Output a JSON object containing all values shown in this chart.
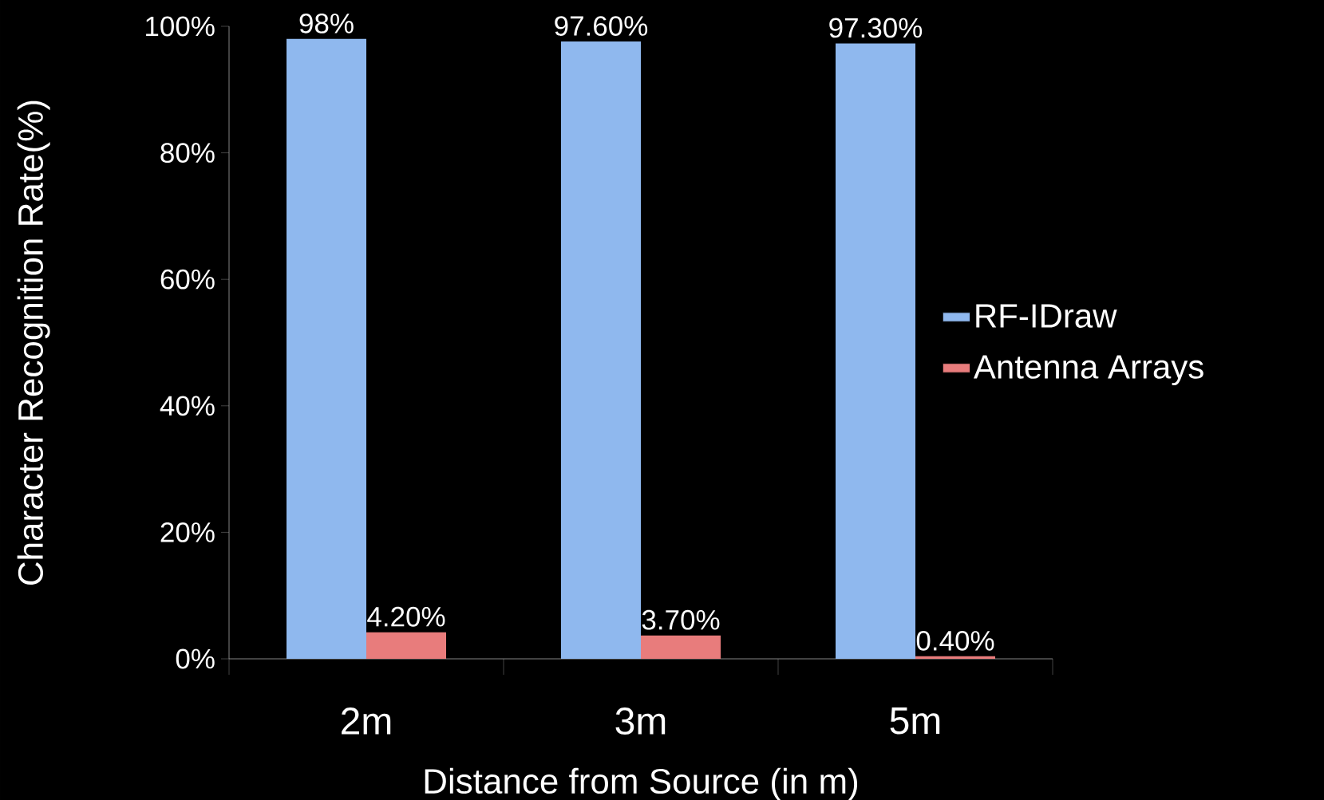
{
  "chart_data": {
    "type": "bar",
    "xlabel": "Distance from Source  (in m)",
    "ylabel": "Character Recognition Rate(%)",
    "categories": [
      "2m",
      "3m",
      "5m"
    ],
    "series": [
      {
        "name": "RF-IDraw",
        "color": "#8fb8ee",
        "values": [
          98,
          97.6,
          97.3
        ],
        "value_labels": [
          "98%",
          "97.60%",
          "97.30%"
        ]
      },
      {
        "name": "Antenna Arrays",
        "color": "#e87c7c",
        "values": [
          4.2,
          3.7,
          0.4
        ],
        "value_labels": [
          "4.20%",
          "3.70%",
          "0.40%"
        ]
      }
    ],
    "ylim": [
      0,
      100
    ],
    "yticks": [
      {
        "value": 0,
        "label": "0%"
      },
      {
        "value": 20,
        "label": "20%"
      },
      {
        "value": 40,
        "label": "40%"
      },
      {
        "value": 60,
        "label": "60%"
      },
      {
        "value": 80,
        "label": "80%"
      },
      {
        "value": 100,
        "label": "100%"
      }
    ],
    "legend": "right"
  }
}
